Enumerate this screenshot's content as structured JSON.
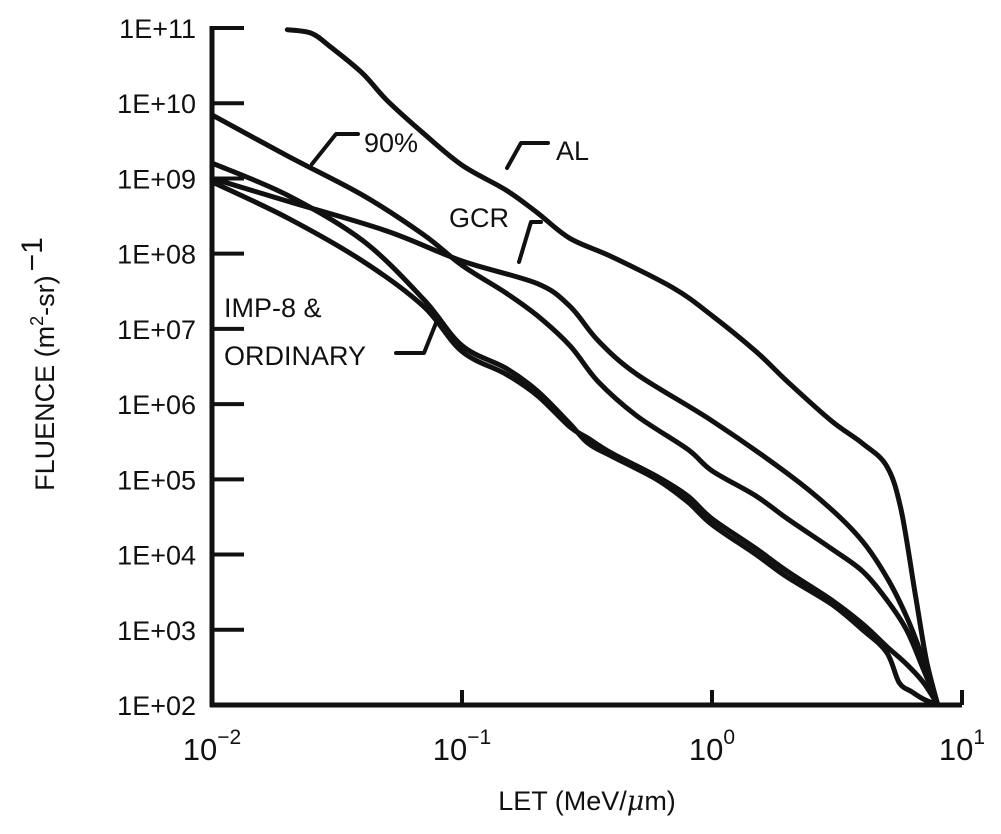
{
  "chart_data": {
    "type": "line",
    "title": "",
    "xlabel": {
      "pre": "LET (MeV/",
      "mu": "μ",
      "post": "m)"
    },
    "ylabel": {
      "pre": "FLUENCE (m",
      "sup": "2",
      "mid": "-sr)",
      "tail": "−1"
    },
    "x_scale": "log",
    "y_scale": "log",
    "xlim": [
      0.01,
      10
    ],
    "ylim": [
      100,
      100000000000
    ],
    "x_ticks": [
      {
        "value": 0.01,
        "base": "10",
        "exp": "−2"
      },
      {
        "value": 0.1,
        "base": "10",
        "exp": "−1"
      },
      {
        "value": 1,
        "base": "10",
        "exp": "0"
      },
      {
        "value": 10,
        "base": "10",
        "exp": "1"
      }
    ],
    "y_ticks": [
      {
        "value": 100000000000,
        "label": "1E+11"
      },
      {
        "value": 10000000000,
        "label": "1E+10"
      },
      {
        "value": 1000000000,
        "label": "1E+09"
      },
      {
        "value": 100000000,
        "label": "1E+08"
      },
      {
        "value": 10000000,
        "label": "1E+07"
      },
      {
        "value": 1000000,
        "label": "1E+06"
      },
      {
        "value": 100000,
        "label": "1E+05"
      },
      {
        "value": 10000,
        "label": "1E+04"
      },
      {
        "value": 1000,
        "label": "1E+03"
      },
      {
        "value": 100,
        "label": "1E+02"
      }
    ],
    "grid": false,
    "series": [
      {
        "name": "AL",
        "x": [
          0.02,
          0.025,
          0.03,
          0.04,
          0.05,
          0.07,
          0.1,
          0.15,
          0.2,
          0.27,
          0.4,
          0.7,
          1,
          1.5,
          2,
          3,
          4,
          5,
          5.7,
          6.5,
          7.2,
          8
        ],
        "y": [
          95000000000,
          85000000000,
          55000000000,
          25000000000,
          11000000000,
          4000000000,
          1500000000,
          700000000,
          350000000,
          160000000,
          90000000,
          35000000,
          15000000,
          5000000,
          2000000,
          600000,
          300000,
          150000,
          40000,
          3000,
          400,
          100
        ]
      },
      {
        "name": "90%",
        "x": [
          0.01,
          0.02,
          0.04,
          0.07,
          0.1,
          0.15,
          0.2,
          0.27,
          0.35,
          0.5,
          0.8,
          1,
          1.5,
          2,
          3,
          4,
          5,
          6,
          7,
          8
        ],
        "y": [
          7000000000,
          2000000000,
          600000000,
          180000000,
          70000000,
          30000000,
          15000000,
          6000000,
          2000000,
          700000,
          250000,
          130000,
          60000,
          30000,
          12000,
          6000,
          2500,
          1000,
          300,
          100
        ]
      },
      {
        "name": "GCR",
        "x": [
          0.01,
          0.02,
          0.05,
          0.1,
          0.2,
          0.27,
          0.35,
          0.5,
          1,
          2,
          3,
          4,
          5,
          6,
          7,
          8
        ],
        "y": [
          1000000000,
          500000000,
          200000000,
          80000000,
          40000000,
          20000000,
          7000000,
          2500000,
          600000,
          120000,
          40000,
          15000,
          5000,
          1500,
          400,
          100
        ]
      },
      {
        "name": "IMP-8",
        "x": [
          0.01,
          0.02,
          0.04,
          0.07,
          0.1,
          0.15,
          0.2,
          0.27,
          0.32,
          0.4,
          0.6,
          0.8,
          1,
          1.5,
          2,
          3,
          4,
          5,
          5.6,
          6.3,
          7,
          8
        ],
        "y": [
          1600000000,
          600000000,
          150000000,
          25000000,
          6000000,
          3000000,
          1500000,
          550000,
          300000,
          200000,
          100000,
          50000,
          25000,
          10000,
          5000,
          2200,
          1000,
          500,
          200,
          150,
          120,
          100
        ]
      },
      {
        "name": "ORDINARY",
        "x": [
          0.01,
          0.02,
          0.04,
          0.07,
          0.1,
          0.15,
          0.2,
          0.27,
          0.32,
          0.4,
          0.6,
          0.8,
          1,
          1.5,
          2,
          3,
          4,
          5,
          6,
          7,
          8
        ],
        "y": [
          900000000,
          300000000,
          80000000,
          20000000,
          5000000,
          2500000,
          1300000,
          500000,
          350000,
          220000,
          110000,
          60000,
          30000,
          12000,
          6000,
          2500,
          1200,
          600,
          350,
          200,
          100
        ]
      }
    ],
    "annotations": [
      {
        "text": "AL",
        "series": "AL"
      },
      {
        "text": "90%",
        "series": "90%"
      },
      {
        "text": "GCR",
        "series": "GCR"
      },
      {
        "text": "IMP-8 &",
        "series": "IMP-8"
      },
      {
        "text": "ORDINARY",
        "series": "ORDINARY"
      }
    ]
  }
}
